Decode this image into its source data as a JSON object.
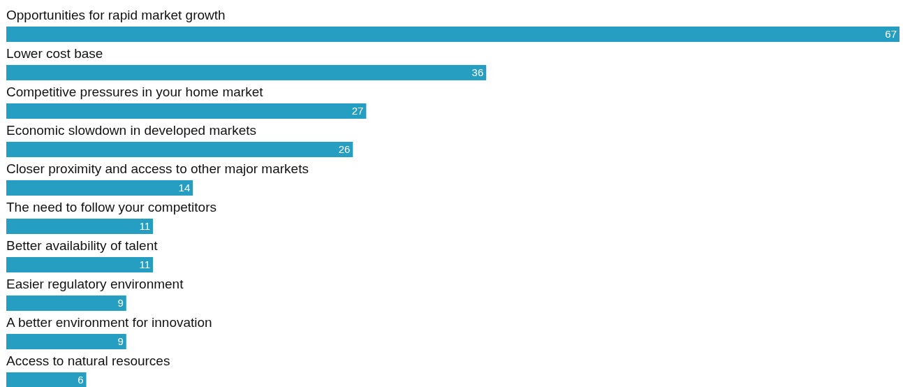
{
  "chart_data": {
    "type": "bar",
    "orientation": "horizontal",
    "data_labels": true,
    "color": "#269ec2",
    "categories": [
      "Opportunities for rapid market growth",
      "Lower cost base",
      "Competitive pressures in your home market",
      "Economic slowdown in developed markets",
      "Closer proximity and access to other major markets",
      "The need to follow your competitors",
      "Better availability of talent",
      "Easier regulatory environment",
      "A better environment for innovation",
      "Access to natural resources"
    ],
    "values": [
      67,
      36,
      27,
      26,
      14,
      11,
      11,
      9,
      9,
      6
    ]
  }
}
